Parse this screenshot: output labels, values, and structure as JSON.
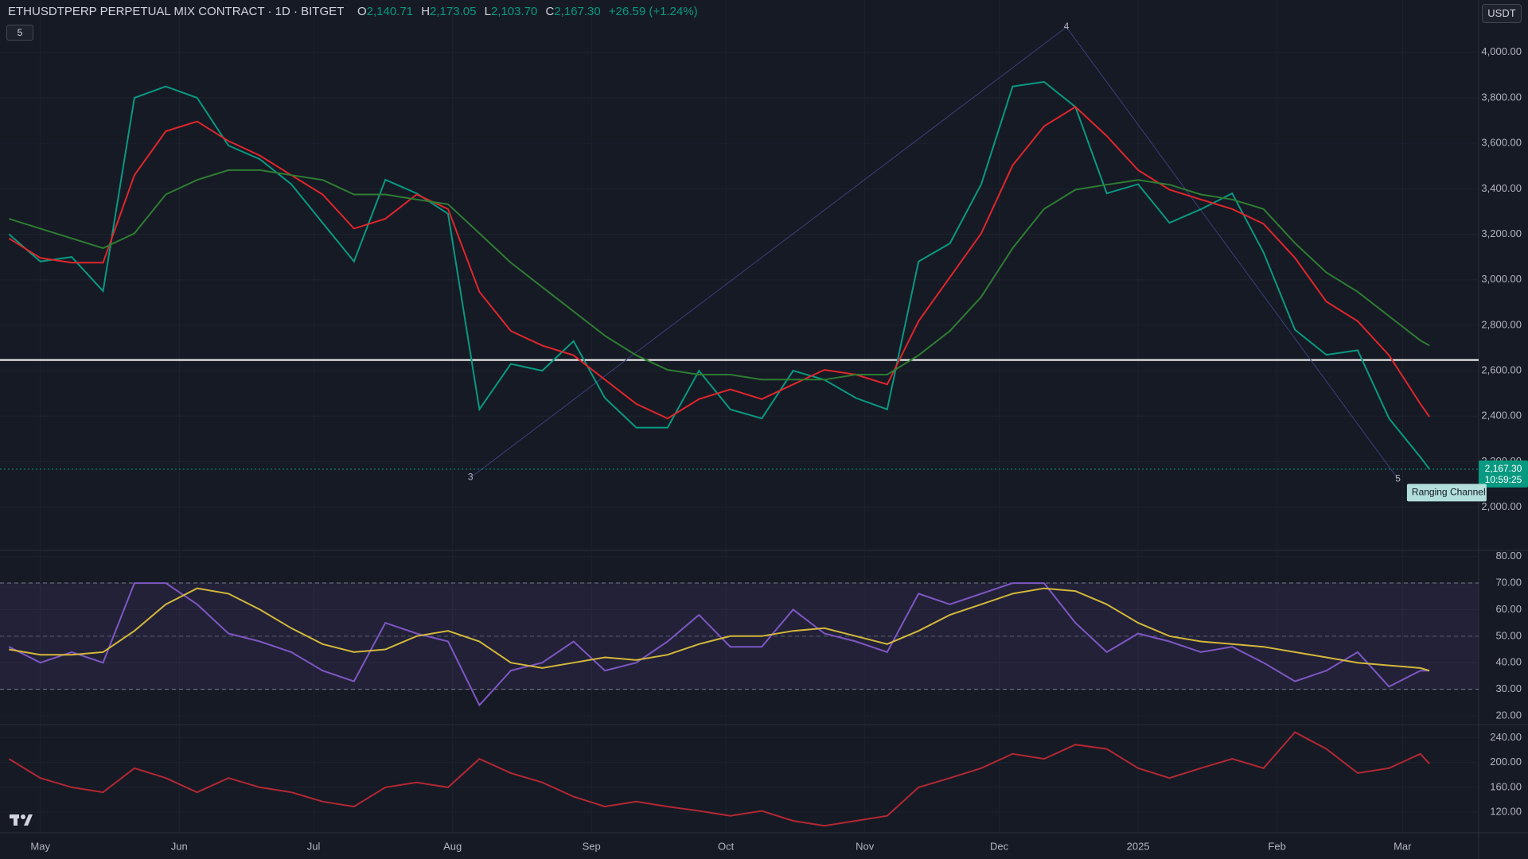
{
  "header": {
    "title": "ETHUSDTPERP PERPETUAL MIX CONTRACT · 1D · BITGET",
    "ohlc": [
      {
        "label": "O",
        "value": "2,140.71"
      },
      {
        "label": "H",
        "value": "2,173.05"
      },
      {
        "label": "L",
        "value": "2,103.70"
      },
      {
        "label": "C",
        "value": "2,167.30"
      }
    ],
    "change": "+26.59 (+1.24%)",
    "currency": "USDT",
    "indicator_count": "5"
  },
  "chart_data": [
    {
      "type": "line",
      "x": [
        -7,
        0,
        7,
        14,
        21,
        28,
        35,
        42,
        49,
        56,
        63,
        70,
        77,
        84,
        91,
        98,
        105,
        112,
        119,
        126,
        133,
        140,
        147,
        154,
        161,
        168,
        175,
        182,
        189,
        196,
        203,
        210,
        217,
        224,
        231,
        238,
        245,
        252,
        259,
        266,
        273,
        280,
        287,
        294,
        301,
        308,
        310
      ],
      "xlim": [
        -9,
        321
      ],
      "ylim": [
        1810,
        4230
      ],
      "yticks": [
        {
          "value": 4000,
          "label": "4,000.00"
        },
        {
          "value": 3800,
          "label": "3,800.00"
        },
        {
          "value": 3600,
          "label": "3,600.00"
        },
        {
          "value": 3400,
          "label": "3,400.00"
        },
        {
          "value": 3200,
          "label": "3,200.00"
        },
        {
          "value": 3000,
          "label": "3,000.00"
        },
        {
          "value": 2800,
          "label": "2,800.00"
        },
        {
          "value": 2600,
          "label": "2,600.00"
        },
        {
          "value": 2400,
          "label": "2,400.00"
        },
        {
          "value": 2200,
          "label": "2,200.00"
        },
        {
          "value": 2000,
          "label": "2,000.00"
        }
      ],
      "series": [
        {
          "color": "#089981",
          "values": [
            3200,
            3080,
            3100,
            2950,
            3800,
            3850,
            3800,
            3590,
            3530,
            3420,
            3250,
            3080,
            3440,
            3380,
            3290,
            2430,
            2630,
            2600,
            2730,
            2480,
            2350,
            2350,
            2600,
            2430,
            2390,
            2600,
            2560,
            2480,
            2430,
            3080,
            3160,
            3420,
            3850,
            3870,
            3760,
            3380,
            3420,
            3250,
            3310,
            3380,
            3120,
            2780,
            2670,
            2690,
            2390,
            2220,
            2167.3
          ]
        },
        {
          "color": "#e0262b",
          "values": [
            3182,
            3096,
            3075,
            3075,
            3460,
            3653,
            3696,
            3610,
            3546,
            3460,
            3375,
            3225,
            3268,
            3375,
            3311,
            2947,
            2775,
            2711,
            2668,
            2561,
            2454,
            2390,
            2475,
            2518,
            2475,
            2540,
            2604,
            2583,
            2540,
            2818,
            3011,
            3204,
            3503,
            3675,
            3760,
            3632,
            3482,
            3396,
            3353,
            3311,
            3246,
            3096,
            2904,
            2818,
            2668,
            2454,
            2398
          ]
        },
        {
          "color": "#2e7d32",
          "values": [
            3268,
            3225,
            3182,
            3139,
            3204,
            3375,
            3439,
            3482,
            3482,
            3460,
            3439,
            3375,
            3375,
            3353,
            3332,
            3204,
            3075,
            2968,
            2861,
            2754,
            2668,
            2604,
            2583,
            2583,
            2561,
            2561,
            2561,
            2583,
            2583,
            2668,
            2775,
            2925,
            3139,
            3311,
            3396,
            3418,
            3439,
            3418,
            3375,
            3353,
            3311,
            3161,
            3032,
            2947,
            2840,
            2733,
            2711
          ]
        }
      ],
      "level": 2647,
      "price_label": {
        "value": 2167.3,
        "label": "2,167.30"
      },
      "countdown": "10:59:25",
      "annotations": [
        {
          "text": "3",
          "x": 96,
          "y": 2130
        },
        {
          "text": "4",
          "x": 229,
          "y": 4111
        },
        {
          "text": "5",
          "x": 303,
          "y": 2124
        },
        {
          "text": "Ranging Channel",
          "x": 305,
          "y": 2064
        }
      ]
    },
    {
      "type": "line",
      "x": [
        -7,
        0,
        7,
        14,
        21,
        28,
        35,
        42,
        49,
        56,
        63,
        70,
        77,
        84,
        91,
        98,
        105,
        112,
        119,
        126,
        133,
        140,
        147,
        154,
        161,
        168,
        175,
        182,
        189,
        196,
        203,
        210,
        217,
        224,
        231,
        238,
        245,
        252,
        259,
        266,
        273,
        280,
        287,
        294,
        301,
        308,
        310
      ],
      "xlim": [
        -9,
        321
      ],
      "ylim": [
        17,
        82
      ],
      "yticks": [
        {
          "value": 80,
          "label": "80.00"
        },
        {
          "value": 70,
          "label": "70.00"
        },
        {
          "value": 60,
          "label": "60.00"
        },
        {
          "value": 50,
          "label": "50.00"
        },
        {
          "value": 40,
          "label": "40.00"
        },
        {
          "value": 30,
          "label": "30.00"
        },
        {
          "value": 20,
          "label": "20.00"
        }
      ],
      "band": [
        30,
        70
      ],
      "midline": 50,
      "series": [
        {
          "color": "#7e57c2",
          "values": [
            46,
            40,
            44,
            40,
            70,
            70,
            62,
            51,
            48,
            44,
            37,
            33,
            55,
            51,
            48,
            24,
            37,
            40,
            48,
            37,
            40,
            48,
            58,
            46,
            46,
            60,
            51,
            48,
            44,
            66,
            62,
            66,
            70,
            70,
            55,
            44,
            51,
            48,
            44,
            46,
            40,
            33,
            37,
            44,
            31,
            37,
            37
          ]
        },
        {
          "color": "#d4b83a",
          "values": [
            45,
            43,
            43,
            44,
            52,
            62,
            68,
            66,
            60,
            53,
            47,
            44,
            45,
            50,
            52,
            48,
            40,
            38,
            40,
            42,
            41,
            43,
            47,
            50,
            50,
            52,
            53,
            50,
            47,
            52,
            58,
            62,
            66,
            68,
            67,
            62,
            55,
            50,
            48,
            47,
            46,
            44,
            42,
            40,
            39,
            38,
            37
          ]
        }
      ]
    },
    {
      "type": "line",
      "x": [
        -7,
        0,
        7,
        14,
        21,
        28,
        35,
        42,
        49,
        56,
        63,
        70,
        77,
        84,
        91,
        98,
        105,
        112,
        119,
        126,
        133,
        140,
        147,
        154,
        161,
        168,
        175,
        182,
        189,
        196,
        203,
        210,
        217,
        224,
        231,
        238,
        245,
        252,
        259,
        266,
        273,
        280,
        287,
        294,
        301,
        308,
        310
      ],
      "xlim": [
        -9,
        321
      ],
      "ylim": [
        88,
        260
      ],
      "yticks": [
        {
          "value": 240,
          "label": "240.00"
        },
        {
          "value": 200,
          "label": "200.00"
        },
        {
          "value": 160,
          "label": "160.00"
        },
        {
          "value": 120,
          "label": "120.00"
        }
      ],
      "xticks": [
        {
          "value": 0,
          "label": "May"
        },
        {
          "value": 31,
          "label": "Jun"
        },
        {
          "value": 61,
          "label": "Jul"
        },
        {
          "value": 92,
          "label": "Aug"
        },
        {
          "value": 123,
          "label": "Sep"
        },
        {
          "value": 153,
          "label": "Oct"
        },
        {
          "value": 184,
          "label": "Nov"
        },
        {
          "value": 214,
          "label": "Dec"
        },
        {
          "value": 245,
          "label": "2025"
        },
        {
          "value": 276,
          "label": "Feb"
        },
        {
          "value": 304,
          "label": "Mar"
        }
      ],
      "series": [
        {
          "color": "#b22833",
          "values": [
            206,
            175,
            160,
            152,
            191,
            175,
            152,
            175,
            160,
            152,
            137,
            129,
            160,
            168,
            160,
            206,
            183,
            168,
            145,
            129,
            137,
            129,
            122,
            114,
            122,
            106,
            98,
            106,
            114,
            160,
            175,
            191,
            214,
            206,
            229,
            222,
            191,
            175,
            191,
            206,
            191,
            249,
            222,
            183,
            191,
            214,
            198
          ]
        }
      ]
    }
  ]
}
